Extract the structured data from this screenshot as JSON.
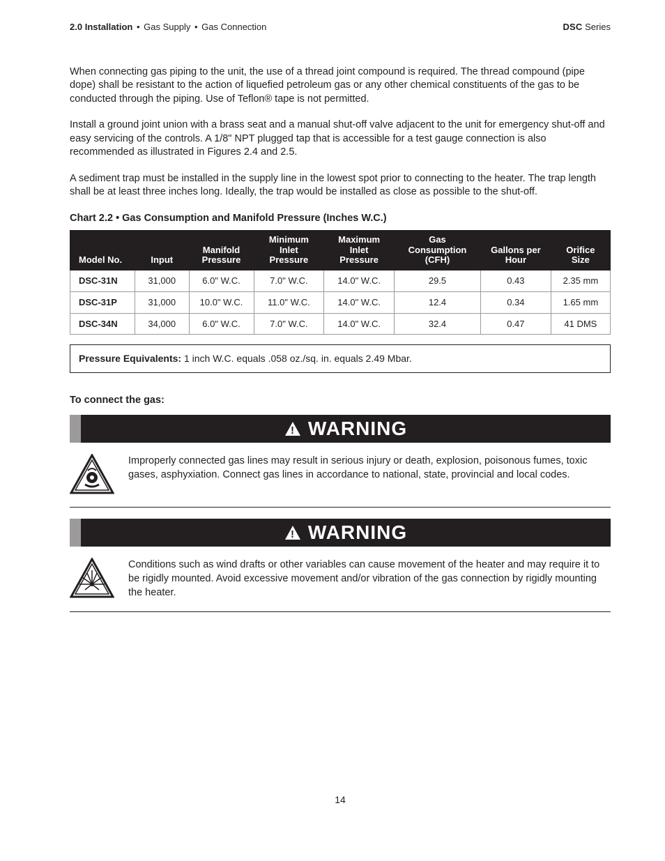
{
  "header": {
    "section_number": "2.0",
    "section_title": "Installation",
    "breadcrumb1": "Gas Supply",
    "breadcrumb2": "Gas Connection",
    "series_bold": "DSC",
    "series_rest": "Series"
  },
  "paragraphs": {
    "p1": "When connecting gas piping to the unit, the use of a thread joint compound is required. The thread compound (pipe dope) shall be resistant to the action of liquefied petroleum gas or any other chemical constituents of the gas to be conducted through the piping. Use of Teflon® tape is not permitted.",
    "p2": "Install a ground joint union with a brass seat and a manual shut-off valve adjacent to the unit for emergency shut-off and easy servicing of the controls. A 1/8\" NPT plugged tap that is accessible for a test gauge connection is also recommended as illustrated in Figures 2.4 and 2.5.",
    "p3": "A sediment trap must be installed in the supply line in the lowest spot prior to connecting to the heater. The trap length shall be at least three inches long. Ideally, the trap would be installed as close as possible to the shut-off."
  },
  "chart": {
    "title_prefix": "Chart 2.2",
    "title_rest": "Gas Consumption and Manifold Pressure (Inches W.C.)",
    "columns": [
      "Model No.",
      "Input",
      "Manifold Pressure",
      "Minimum Inlet Pressure",
      "Maximum Inlet Pressure",
      "Gas Consumption (CFH)",
      "Gallons per Hour",
      "Orifice Size"
    ],
    "col_widths_pct": [
      12,
      10,
      12,
      13,
      13,
      16,
      13,
      11
    ],
    "header_bg": "#231f20",
    "header_fg": "#ffffff",
    "cell_border": "#9c9a9b",
    "rows": [
      [
        "DSC-31N",
        "31,000",
        "6.0\" W.C.",
        "7.0\" W.C.",
        "14.0\" W.C.",
        "29.5",
        "0.43",
        "2.35 mm"
      ],
      [
        "DSC-31P",
        "31,000",
        "10.0\" W.C.",
        "11.0\" W.C.",
        "14.0\" W.C.",
        "12.4",
        "0.34",
        "1.65 mm"
      ],
      [
        "DSC-34N",
        "34,000",
        "6.0\" W.C.",
        "7.0\" W.C.",
        "14.0\" W.C.",
        "32.4",
        "0.47",
        "41 DMS"
      ]
    ]
  },
  "equivalents": {
    "label": "Pressure Equivalents:",
    "text": " 1 inch W.C. equals .058 oz./sq. in. equals 2.49 Mbar."
  },
  "subhead": "To connect the gas:",
  "warning_label": "WARNING",
  "warnings": {
    "w1": "Improperly connected gas lines may result in serious injury or death, explosion, poisonous fumes, toxic gases, asphyxiation. Connect gas lines in accordance to national, state, provincial and local codes.",
    "w2": "Conditions such as wind drafts or other variables can cause movement of the heater and may require it to be rigidly mounted.  Avoid excessive movement and/or vibration of the gas connection by rigidly mounting the heater."
  },
  "page_number": "14",
  "colors": {
    "text": "#231f20",
    "bar_bg": "#231f20",
    "bar_accent": "#9c9a9b",
    "page_bg": "#ffffff"
  },
  "fonts": {
    "body_family": "Arial, Helvetica, sans-serif",
    "body_size_pt": 11,
    "warning_size_pt": 21,
    "header_size_pt": 10
  }
}
